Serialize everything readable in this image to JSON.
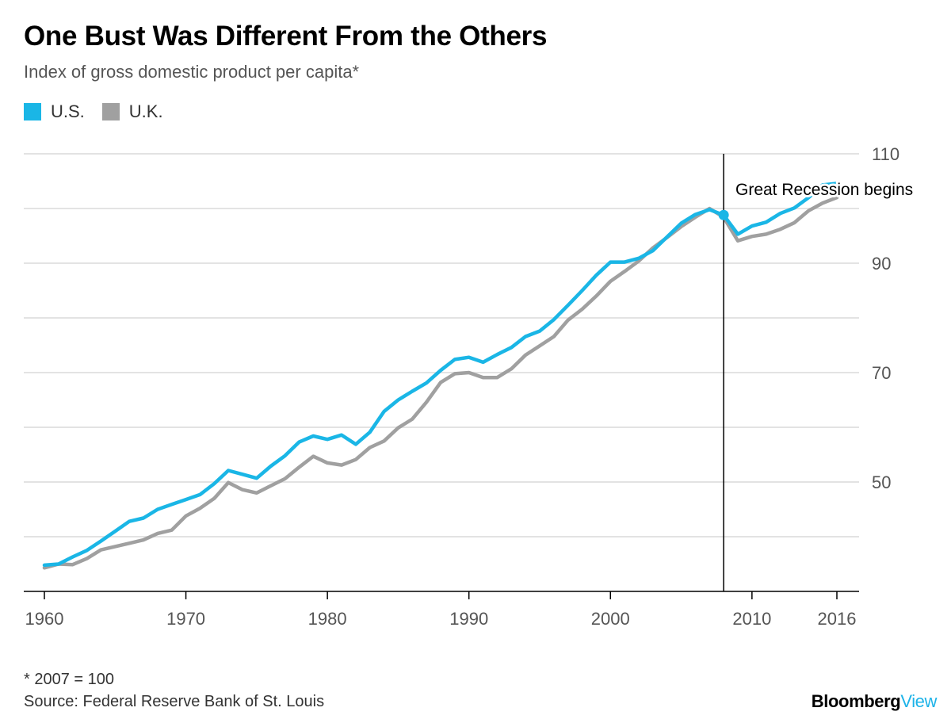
{
  "chart_data": {
    "type": "line",
    "title": "One Bust Was Different From the Others",
    "subtitle": "Index of gross domestic product per capita*",
    "footnote": "* 2007 = 100",
    "source": "Source: Federal Reserve Bank of St. Louis",
    "brand": {
      "part1": "Bloomberg",
      "part2": "View"
    },
    "x": [
      1960,
      1961,
      1962,
      1963,
      1964,
      1965,
      1966,
      1967,
      1968,
      1969,
      1970,
      1971,
      1972,
      1973,
      1974,
      1975,
      1976,
      1977,
      1978,
      1979,
      1980,
      1981,
      1982,
      1983,
      1984,
      1985,
      1986,
      1987,
      1988,
      1989,
      1990,
      1991,
      1992,
      1993,
      1994,
      1995,
      1996,
      1997,
      1998,
      1999,
      2000,
      2001,
      2002,
      2003,
      2004,
      2005,
      2006,
      2007,
      2008,
      2009,
      2010,
      2011,
      2012,
      2013,
      2014,
      2015,
      2016
    ],
    "series": [
      {
        "name": "U.S.",
        "color": "#1ab6e6",
        "values": [
          34.8,
          35.0,
          36.3,
          37.5,
          39.2,
          41.0,
          42.8,
          43.4,
          45.0,
          45.9,
          46.8,
          47.7,
          49.7,
          52.1,
          51.4,
          50.7,
          52.9,
          54.8,
          57.3,
          58.4,
          57.8,
          58.6,
          56.9,
          59.1,
          62.9,
          65.0,
          66.6,
          68.1,
          70.4,
          72.4,
          72.8,
          71.9,
          73.3,
          74.6,
          76.6,
          77.6,
          79.7,
          82.3,
          85.0,
          87.8,
          90.2,
          90.2,
          90.9,
          92.3,
          94.8,
          97.3,
          98.9,
          99.8,
          98.8,
          95.3,
          96.8,
          97.5,
          99.1,
          100.1,
          102.0,
          104.3,
          104.6
        ]
      },
      {
        "name": "U.K.",
        "color": "#a0a0a0",
        "values": [
          34.3,
          35.0,
          34.9,
          36.0,
          37.6,
          38.2,
          38.8,
          39.4,
          40.6,
          41.2,
          43.8,
          45.2,
          47.0,
          49.9,
          48.6,
          48.0,
          49.3,
          50.6,
          52.7,
          54.7,
          53.5,
          53.1,
          54.1,
          56.3,
          57.5,
          59.9,
          61.5,
          64.6,
          68.2,
          69.8,
          70.0,
          69.1,
          69.1,
          70.7,
          73.2,
          74.9,
          76.6,
          79.6,
          81.6,
          84.0,
          86.7,
          88.5,
          90.4,
          92.8,
          94.7,
          96.7,
          98.4,
          100.0,
          98.4,
          94.1,
          94.9,
          95.3,
          96.2,
          97.4,
          99.6,
          101.0,
          102.0
        ]
      }
    ],
    "y_ticks": [
      50,
      70,
      90,
      110
    ],
    "x_ticks": [
      1960,
      1970,
      1980,
      1990,
      2000,
      2010,
      2016
    ],
    "ylim": [
      30,
      110
    ],
    "xlim": [
      1960,
      2016
    ],
    "grid": true,
    "legend_position": "top-left",
    "annotation": {
      "x": 2008,
      "text": "Great Recession begins",
      "marker_value": 98.8
    }
  }
}
